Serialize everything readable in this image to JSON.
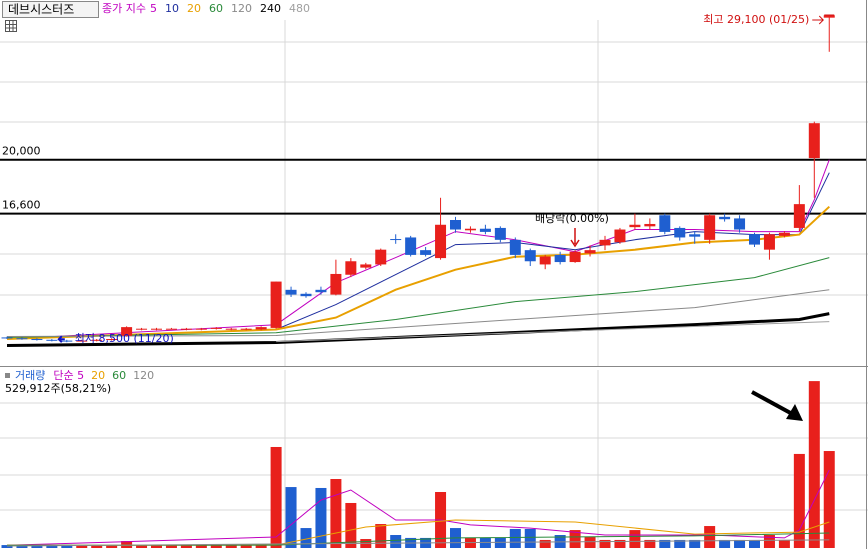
{
  "chart_data": {
    "type": "candlestick",
    "title": "데브시스터즈",
    "ylim": [
      7000,
      30000
    ],
    "up_color": "#e8201c",
    "down_color": "#1f5fd0",
    "open": [
      8800,
      8750,
      8700,
      8650,
      8600,
      8550,
      8600,
      8650,
      8900,
      9300,
      9300,
      9350,
      9300,
      9300,
      9350,
      9300,
      9300,
      9300,
      9400,
      11800,
      11550,
      11800,
      11500,
      12750,
      13200,
      13400,
      15000,
      15100,
      14300,
      13800,
      16200,
      15550,
      15650,
      15700,
      14950,
      14300,
      13400,
      14000,
      13550,
      14100,
      14600,
      14800,
      15750,
      15800,
      16500,
      15700,
      15300,
      14950,
      16400,
      16300,
      15300,
      14330,
      15200,
      15700,
      20100,
      28950
    ],
    "high": [
      8850,
      8800,
      8750,
      8700,
      8650,
      8650,
      8700,
      8750,
      9500,
      9400,
      9400,
      9400,
      9400,
      9400,
      9450,
      9400,
      9400,
      9500,
      12320,
      12000,
      11650,
      12000,
      13700,
      13800,
      13500,
      14400,
      15300,
      15200,
      14500,
      17600,
      16400,
      15800,
      15900,
      15800,
      15100,
      14400,
      14000,
      14200,
      14300,
      14600,
      15200,
      15700,
      16600,
      16300,
      16600,
      15800,
      15500,
      16600,
      16600,
      16500,
      15400,
      15400,
      15500,
      18400,
      22400,
      29100
    ],
    "low": [
      8700,
      8650,
      8600,
      8550,
      8500,
      8550,
      8550,
      8600,
      8850,
      9250,
      9250,
      9300,
      9250,
      9250,
      9300,
      9250,
      9250,
      9250,
      9350,
      11350,
      11300,
      11500,
      11450,
      12600,
      13100,
      13300,
      14700,
      13900,
      13900,
      13700,
      15400,
      15400,
      15300,
      14800,
      13800,
      13300,
      13100,
      13400,
      13500,
      13900,
      14300,
      14700,
      15600,
      15600,
      15300,
      14900,
      14700,
      14700,
      16100,
      15400,
      14500,
      13700,
      15100,
      15500,
      17600,
      26800
    ],
    "close": [
      8750,
      8700,
      8650,
      8600,
      8550,
      8600,
      8650,
      8700,
      9450,
      9350,
      9350,
      9350,
      9350,
      9350,
      9400,
      9350,
      9350,
      9450,
      12320,
      11500,
      11400,
      11650,
      12800,
      13600,
      13400,
      14330,
      14950,
      14000,
      14000,
      15900,
      15600,
      15650,
      15450,
      14950,
      14000,
      13600,
      13900,
      13550,
      14200,
      14300,
      14950,
      15600,
      15900,
      15950,
      15450,
      15100,
      15150,
      16500,
      16250,
      15600,
      14650,
      15300,
      15400,
      17200,
      22300,
      29100
    ],
    "ma_label": "종가 지수",
    "ma_series": [
      {
        "name": "5",
        "color": "#c000c0",
        "x": [
          0,
          18,
          22,
          26,
          30,
          34,
          38,
          42,
          46,
          50,
          53,
          54,
          55
        ],
        "values": [
          8700,
          9600,
          12250,
          13830,
          15470,
          14960,
          14200,
          15600,
          15600,
          15470,
          15470,
          17480,
          20000
        ]
      },
      {
        "name": "10",
        "color": "#1f2f9f",
        "x": [
          0,
          18,
          22,
          26,
          30,
          34,
          38,
          42,
          46,
          50,
          53,
          55
        ],
        "values": [
          8700,
          9300,
          10870,
          12760,
          14650,
          14780,
          14330,
          14960,
          15470,
          15280,
          15280,
          19180
        ]
      },
      {
        "name": "20",
        "color": "#e8a000",
        "x": [
          0,
          18,
          22,
          26,
          30,
          34,
          38,
          42,
          46,
          50,
          53,
          55
        ],
        "values": [
          8700,
          9300,
          10050,
          11810,
          13070,
          13890,
          14020,
          14330,
          14780,
          14960,
          15280,
          17040
        ]
      },
      {
        "name": "60",
        "color": "#2a8a3a",
        "x": [
          0,
          18,
          26,
          34,
          42,
          50,
          55
        ],
        "values": [
          8800,
          9100,
          9930,
          11060,
          11690,
          12570,
          13830
        ]
      },
      {
        "name": "120",
        "color": "#8a8a8a",
        "x": [
          0,
          18,
          34,
          46,
          55
        ],
        "values": [
          8860,
          8920,
          9930,
          10680,
          11810
        ]
      },
      {
        "name": "240",
        "color": "#000000",
        "x": [
          0,
          18,
          34,
          46,
          53,
          55
        ],
        "values": [
          8290,
          8480,
          9110,
          9610,
          9930,
          10300
        ]
      },
      {
        "name": "480",
        "color": "#a0a0a0",
        "x": [
          18,
          55
        ],
        "values": [
          8540,
          9800
        ]
      }
    ],
    "hlines": [
      {
        "value": 20000,
        "label": "20,000"
      },
      {
        "value": 16600,
        "label": "16,600"
      }
    ],
    "high_note": "최고 29,100 (01/25)",
    "low_note": "최저 8,500 (11/20)",
    "dividend_note": "배당락(0.00%)",
    "volume_label": "거래량",
    "volume_status": "529,912주(58,21%)",
    "volume_ylim": [
      0,
      1000000
    ],
    "volume": [
      16000,
      14000,
      15000,
      13000,
      18000,
      14000,
      15000,
      16000,
      38000,
      16000,
      15000,
      14000,
      16000,
      15000,
      16000,
      14000,
      15000,
      18000,
      552000,
      333000,
      109000,
      328000,
      377000,
      246000,
      49000,
      131000,
      71000,
      55000,
      55000,
      306000,
      109000,
      55000,
      55000,
      55000,
      104000,
      104000,
      44000,
      71000,
      98000,
      60000,
      44000,
      44000,
      98000,
      44000,
      44000,
      44000,
      44000,
      120000,
      44000,
      44000,
      44000,
      71000,
      44000,
      514000,
      912000,
      529912
    ],
    "volume_ma_series": [
      {
        "name": "단순 5",
        "color": "#c000c0",
        "x": [
          0,
          18,
          21,
          23,
          26,
          29,
          31,
          35,
          40,
          47,
          52,
          53,
          54,
          55
        ],
        "values": [
          15000,
          60000,
          262000,
          317000,
          153000,
          153000,
          126000,
          109000,
          71000,
          71000,
          55000,
          98000,
          262000,
          426000
        ]
      },
      {
        "name": "20",
        "color": "#e8a000",
        "x": [
          0,
          18,
          24,
          30,
          38,
          46,
          53,
          55
        ],
        "values": [
          15000,
          16000,
          115000,
          153000,
          142000,
          76000,
          87000,
          142000
        ]
      },
      {
        "name": "60",
        "color": "#2a8a3a",
        "x": [
          0,
          18,
          30,
          46,
          55
        ],
        "values": [
          15000,
          16000,
          55000,
          66000,
          82000
        ]
      },
      {
        "name": "120",
        "color": "#8a8a8a",
        "x": [
          0,
          55
        ],
        "values": [
          11000,
          44000
        ]
      }
    ]
  }
}
